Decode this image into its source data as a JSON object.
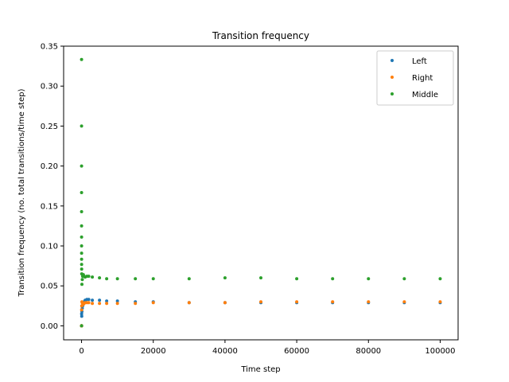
{
  "chart_data": {
    "type": "scatter",
    "title": "Transition frequency",
    "xlabel": "Time step",
    "ylabel": "Transition frequency (no. total transitions/time step)",
    "xlim": [
      -5000,
      105000
    ],
    "ylim": [
      -0.0175,
      0.35
    ],
    "xticks": [
      0,
      20000,
      40000,
      60000,
      80000,
      100000
    ],
    "xtick_labels": [
      "0",
      "20000",
      "40000",
      "60000",
      "80000",
      "100000"
    ],
    "yticks": [
      0.0,
      0.05,
      0.1,
      0.15,
      0.2,
      0.25,
      0.3,
      0.35
    ],
    "ytick_labels": [
      "0.00",
      "0.05",
      "0.10",
      "0.15",
      "0.20",
      "0.25",
      "0.30",
      "0.35"
    ],
    "grid": false,
    "legend_position": "top-right",
    "series": [
      {
        "name": "Left",
        "color": "#1f77b4",
        "x": [
          1,
          2,
          3,
          5,
          8,
          10,
          20,
          50,
          100,
          200,
          300,
          500,
          700,
          1000,
          1500,
          2000,
          3000,
          5000,
          7000,
          10000,
          15000,
          20000,
          30000,
          40000,
          50000,
          60000,
          70000,
          80000,
          90000,
          100000
        ],
        "y": [
          0.0,
          0.0,
          0.0,
          0.0,
          0.0,
          0.0,
          0.015,
          0.012,
          0.018,
          0.022,
          0.025,
          0.028,
          0.03,
          0.032,
          0.033,
          0.033,
          0.032,
          0.032,
          0.031,
          0.031,
          0.03,
          0.03,
          0.029,
          0.029,
          0.029,
          0.029,
          0.029,
          0.029,
          0.029,
          0.029
        ]
      },
      {
        "name": "Right",
        "color": "#ff7f0e",
        "x": [
          1,
          2,
          3,
          5,
          8,
          10,
          20,
          50,
          100,
          200,
          300,
          500,
          700,
          1000,
          1500,
          2000,
          3000,
          5000,
          7000,
          10000,
          15000,
          20000,
          30000,
          40000,
          50000,
          60000,
          70000,
          80000,
          90000,
          100000
        ],
        "y": [
          0.0,
          0.0,
          0.0,
          0.0,
          0.0,
          0.0,
          0.02,
          0.025,
          0.03,
          0.029,
          0.028,
          0.027,
          0.028,
          0.029,
          0.029,
          0.029,
          0.028,
          0.028,
          0.028,
          0.028,
          0.028,
          0.029,
          0.029,
          0.029,
          0.03,
          0.03,
          0.03,
          0.03,
          0.03,
          0.03
        ]
      },
      {
        "name": "Middle",
        "color": "#2ca02c",
        "x": [
          2,
          3,
          4,
          5,
          6,
          7,
          8,
          9,
          10,
          12,
          15,
          20,
          30,
          50,
          100,
          200,
          300,
          500,
          700,
          1000,
          1500,
          2000,
          3000,
          5000,
          7000,
          10000,
          15000,
          20000,
          30000,
          40000,
          50000,
          60000,
          70000,
          80000,
          90000,
          100000
        ],
        "y": [
          0.0,
          0.3333,
          0.25,
          0.2,
          0.1667,
          0.1429,
          0.125,
          0.1111,
          0.1,
          0.0909,
          0.0833,
          0.0769,
          0.071,
          0.065,
          0.052,
          0.058,
          0.062,
          0.064,
          0.062,
          0.061,
          0.062,
          0.062,
          0.061,
          0.06,
          0.059,
          0.059,
          0.059,
          0.059,
          0.059,
          0.06,
          0.06,
          0.059,
          0.059,
          0.059,
          0.059,
          0.059
        ]
      }
    ]
  }
}
